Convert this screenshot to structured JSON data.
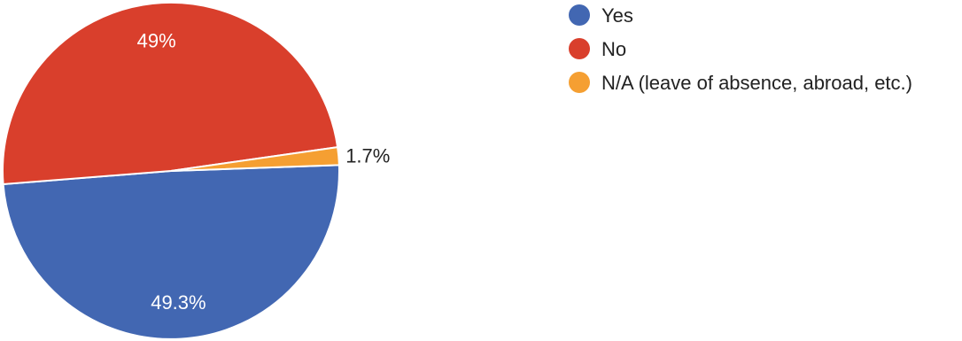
{
  "chart_data": {
    "type": "pie",
    "legend_position": "right",
    "slices": [
      {
        "label": "Yes",
        "value": 49.3,
        "value_label": "49.3%",
        "color": "#4267b2"
      },
      {
        "label": "No",
        "value": 49,
        "value_label": "49%",
        "color": "#d93f2c"
      },
      {
        "label": "N/A (leave of absence, abroad, etc.)",
        "value": 1.7,
        "value_label": "1.7%",
        "color": "#f59f32"
      }
    ]
  }
}
